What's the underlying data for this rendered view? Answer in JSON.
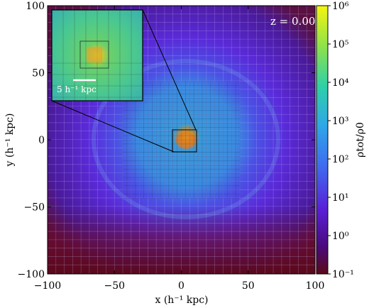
{
  "chart_data": {
    "type": "heatmap",
    "xlabel": "x (h⁻¹ kpc)",
    "ylabel": "y (h⁻¹ kpc)",
    "xlim": [
      -100,
      100
    ],
    "ylim": [
      -100,
      100
    ],
    "x_ticks": [
      "−100",
      "−50",
      "0",
      "50",
      "100"
    ],
    "y_ticks": [
      "−100",
      "−50",
      "0",
      "50",
      "100"
    ],
    "x_tick_values": [
      -100,
      -50,
      0,
      50,
      100
    ],
    "y_tick_values": [
      -100,
      -50,
      0,
      50,
      100
    ],
    "colorbar": {
      "label": "ρtot/ρ0",
      "scale": "log",
      "range": [
        0.1,
        1000000
      ],
      "ticks": [
        "10⁻¹",
        "10⁰",
        "10¹",
        "10²",
        "10³",
        "10⁴",
        "10⁵",
        "10⁶"
      ],
      "tick_exponents": [
        -1,
        0,
        1,
        2,
        3,
        4,
        5,
        6
      ],
      "colormap": [
        "#5a0a18",
        "#4a0a7a",
        "#5a1fd6",
        "#3f6af0",
        "#2fa6e8",
        "#2fd0a8",
        "#8fe24a",
        "#f5f510"
      ]
    },
    "annotation": "z = 0.00",
    "inset": {
      "scalebar_label": "5 h⁻¹ kpc",
      "zoom_region": {
        "x": [
          -10,
          10
        ],
        "y": [
          -8,
          8
        ]
      }
    }
  }
}
